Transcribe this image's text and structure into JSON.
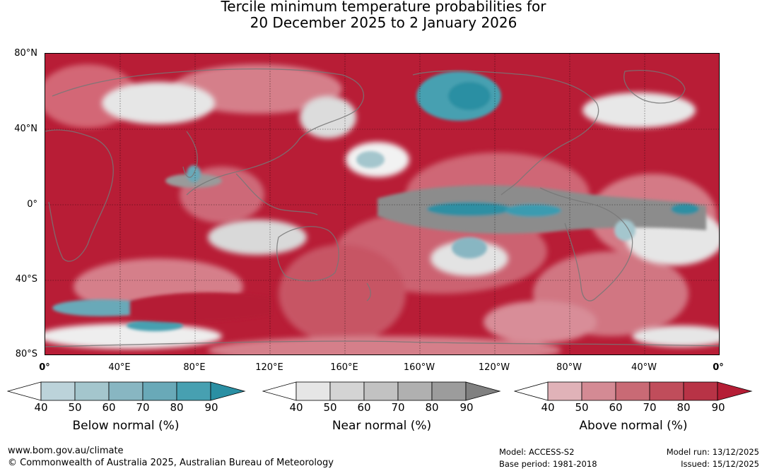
{
  "header": {
    "title_line1": "Tercile minimum temperature probabilities for",
    "title_line2": "20 December 2025 to 2 January 2026"
  },
  "map": {
    "lat_labels": [
      "80°N",
      "40°N",
      "0°",
      "40°S",
      "80°S"
    ],
    "lon_labels": [
      "0°",
      "40°E",
      "80°E",
      "120°E",
      "160°E",
      "160°W",
      "120°W",
      "80°W",
      "40°W",
      "0°"
    ],
    "colors": {
      "above_dominant": "#b81d36",
      "near_grey": "#8c8c8c",
      "below_blue": "#2f8fa3"
    }
  },
  "legend": {
    "ticks": [
      "40",
      "50",
      "60",
      "70",
      "80",
      "90"
    ],
    "below": {
      "label": "Below normal (%)",
      "colors": [
        "#ffffff",
        "#bcd3da",
        "#a4c6cd",
        "#88b6c2",
        "#69a9b8",
        "#47a0b1",
        "#2a8fa3"
      ]
    },
    "near": {
      "label": "Near normal (%)",
      "colors": [
        "#ffffff",
        "#e6e6e6",
        "#d4d4d4",
        "#c2c2c2",
        "#b0b0b0",
        "#9c9c9c",
        "#808080"
      ]
    },
    "above": {
      "label": "Above normal (%)",
      "colors": [
        "#ffffff",
        "#e0b2b8",
        "#d48a94",
        "#c96a75",
        "#c04d5b",
        "#b83346",
        "#b51d35"
      ]
    }
  },
  "footer": {
    "website": "www.bom.gov.au/climate",
    "copyright": "© Commonwealth of Australia 2025, Australian Bureau of Meteorology",
    "model": "Model: ACCESS-S2",
    "base_period": "Base period: 1981-2018",
    "model_run": "Model run: 13/12/2025",
    "issued": "Issued: 15/12/2025"
  }
}
